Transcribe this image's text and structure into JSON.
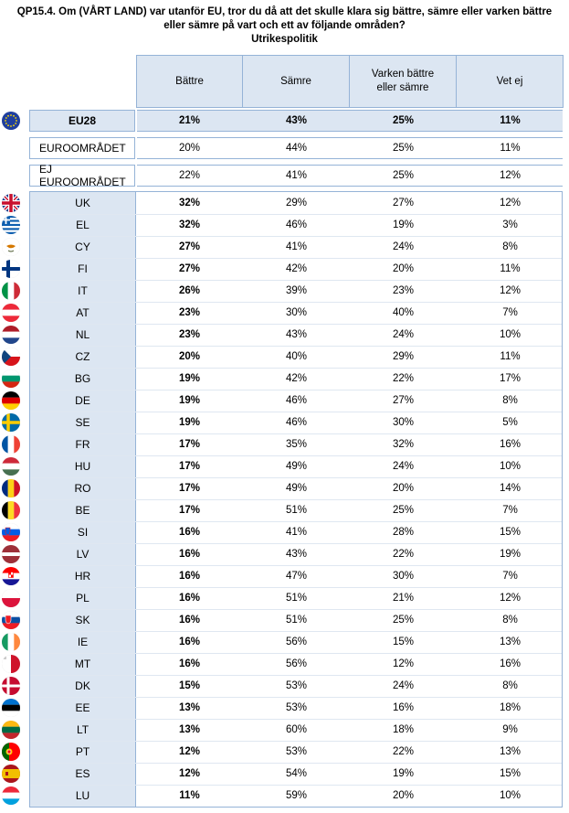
{
  "title": {
    "line1": "QP15.4. Om (VÅRT LAND) var utanför EU, tror du då att det skulle klara sig bättre, sämre eller varken bättre",
    "line2": "eller sämre på vart och ett av följande områden?",
    "line3": "Utrikespolitik"
  },
  "columns": [
    "Bättre",
    "Sämre",
    "Varken bättre eller sämre",
    "Vet ej"
  ],
  "summary_rows": [
    {
      "label": "EU28",
      "values": [
        "21%",
        "43%",
        "25%",
        "11%"
      ],
      "flag": "eu"
    },
    {
      "label": "EUROOMRÅDET",
      "values": [
        "20%",
        "44%",
        "25%",
        "11%"
      ]
    },
    {
      "label": "EJ EUROOMRÅDET",
      "values": [
        "22%",
        "41%",
        "25%",
        "12%"
      ]
    }
  ],
  "countries": [
    {
      "label": "UK",
      "flag": "uk",
      "values": [
        "32%",
        "29%",
        "27%",
        "12%"
      ]
    },
    {
      "label": "EL",
      "flag": "el",
      "values": [
        "32%",
        "46%",
        "19%",
        "3%"
      ]
    },
    {
      "label": "CY",
      "flag": "cy",
      "values": [
        "27%",
        "41%",
        "24%",
        "8%"
      ]
    },
    {
      "label": "FI",
      "flag": "fi",
      "values": [
        "27%",
        "42%",
        "20%",
        "11%"
      ]
    },
    {
      "label": "IT",
      "flag": "it",
      "values": [
        "26%",
        "39%",
        "23%",
        "12%"
      ]
    },
    {
      "label": "AT",
      "flag": "at",
      "values": [
        "23%",
        "30%",
        "40%",
        "7%"
      ]
    },
    {
      "label": "NL",
      "flag": "nl",
      "values": [
        "23%",
        "43%",
        "24%",
        "10%"
      ]
    },
    {
      "label": "CZ",
      "flag": "cz",
      "values": [
        "20%",
        "40%",
        "29%",
        "11%"
      ]
    },
    {
      "label": "BG",
      "flag": "bg",
      "values": [
        "19%",
        "42%",
        "22%",
        "17%"
      ]
    },
    {
      "label": "DE",
      "flag": "de",
      "values": [
        "19%",
        "46%",
        "27%",
        "8%"
      ]
    },
    {
      "label": "SE",
      "flag": "se",
      "values": [
        "19%",
        "46%",
        "30%",
        "5%"
      ]
    },
    {
      "label": "FR",
      "flag": "fr",
      "values": [
        "17%",
        "35%",
        "32%",
        "16%"
      ]
    },
    {
      "label": "HU",
      "flag": "hu",
      "values": [
        "17%",
        "49%",
        "24%",
        "10%"
      ]
    },
    {
      "label": "RO",
      "flag": "ro",
      "values": [
        "17%",
        "49%",
        "20%",
        "14%"
      ]
    },
    {
      "label": "BE",
      "flag": "be",
      "values": [
        "17%",
        "51%",
        "25%",
        "7%"
      ]
    },
    {
      "label": "SI",
      "flag": "si",
      "values": [
        "16%",
        "41%",
        "28%",
        "15%"
      ]
    },
    {
      "label": "LV",
      "flag": "lv",
      "values": [
        "16%",
        "43%",
        "22%",
        "19%"
      ]
    },
    {
      "label": "HR",
      "flag": "hr",
      "values": [
        "16%",
        "47%",
        "30%",
        "7%"
      ]
    },
    {
      "label": "PL",
      "flag": "pl",
      "values": [
        "16%",
        "51%",
        "21%",
        "12%"
      ]
    },
    {
      "label": "SK",
      "flag": "sk",
      "values": [
        "16%",
        "51%",
        "25%",
        "8%"
      ]
    },
    {
      "label": "IE",
      "flag": "ie",
      "values": [
        "16%",
        "56%",
        "15%",
        "13%"
      ]
    },
    {
      "label": "MT",
      "flag": "mt",
      "values": [
        "16%",
        "56%",
        "12%",
        "16%"
      ]
    },
    {
      "label": "DK",
      "flag": "dk",
      "values": [
        "15%",
        "53%",
        "24%",
        "8%"
      ]
    },
    {
      "label": "EE",
      "flag": "ee",
      "values": [
        "13%",
        "53%",
        "16%",
        "18%"
      ]
    },
    {
      "label": "LT",
      "flag": "lt",
      "values": [
        "13%",
        "60%",
        "18%",
        "9%"
      ]
    },
    {
      "label": "PT",
      "flag": "pt",
      "values": [
        "12%",
        "53%",
        "22%",
        "13%"
      ]
    },
    {
      "label": "ES",
      "flag": "es",
      "values": [
        "12%",
        "54%",
        "19%",
        "15%"
      ]
    },
    {
      "label": "LU",
      "flag": "lu",
      "values": [
        "11%",
        "59%",
        "20%",
        "10%"
      ]
    }
  ],
  "colors": {
    "header_fill": "#dce6f2",
    "border": "#95b3d7"
  }
}
